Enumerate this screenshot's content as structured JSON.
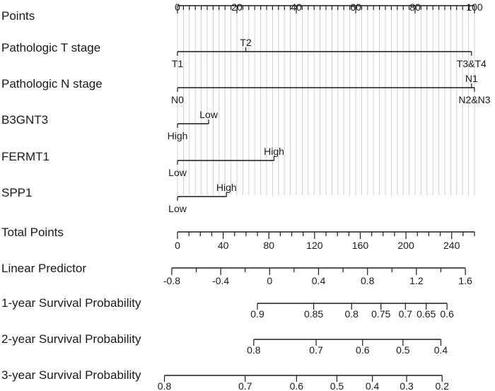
{
  "chart_data": {
    "type": "nomogram",
    "title": "",
    "points_axis": {
      "label": "Points",
      "min": 0,
      "max": 100,
      "major_ticks": [
        0,
        20,
        40,
        60,
        80,
        100
      ],
      "minor_step": 2
    },
    "variables": [
      {
        "label": "Pathologic T stage",
        "levels": [
          {
            "name": "T1",
            "points": 0,
            "pos": "below"
          },
          {
            "name": "T2",
            "points": 23,
            "pos": "above"
          },
          {
            "name": "T3&T4",
            "points": 99,
            "pos": "below"
          }
        ]
      },
      {
        "label": "Pathologic N stage",
        "levels": [
          {
            "name": "N0",
            "points": 0,
            "pos": "below"
          },
          {
            "name": "N1",
            "points": 99,
            "pos": "above"
          },
          {
            "name": "N2&N3",
            "points": 100,
            "pos": "below"
          }
        ]
      },
      {
        "label": "B3GNT3",
        "levels": [
          {
            "name": "High",
            "points": 0,
            "pos": "below"
          },
          {
            "name": "Low",
            "points": 10.5,
            "pos": "above"
          }
        ]
      },
      {
        "label": "FERMT1",
        "levels": [
          {
            "name": "Low",
            "points": 0,
            "pos": "below"
          },
          {
            "name": "High",
            "points": 32.5,
            "pos": "above"
          }
        ]
      },
      {
        "label": "SPP1",
        "levels": [
          {
            "name": "Low",
            "points": 0,
            "pos": "below"
          },
          {
            "name": "High",
            "points": 16.5,
            "pos": "above"
          }
        ]
      }
    ],
    "total_points": {
      "label": "Total Points",
      "min": 0,
      "max": 260,
      "major_ticks": [
        0,
        40,
        80,
        120,
        160,
        200,
        240
      ],
      "minor_step": 10
    },
    "linear_predictor": {
      "label": "Linear Predictor",
      "ticks": [
        "-0.8",
        "-0.4",
        "0",
        "0.4",
        "0.8",
        "1.2",
        "1.6"
      ],
      "tick_values": [
        -0.8,
        -0.4,
        0,
        0.4,
        0.8,
        1.2,
        1.6
      ],
      "minor_step": 0.2,
      "range": [
        -0.8,
        1.6
      ],
      "total_points_at_min": -5,
      "total_points_at_max": 252
    },
    "survival_axes": [
      {
        "label": "1-year Survival Probability",
        "ticks": [
          {
            "label": "0.9",
            "lp": -0.1
          },
          {
            "label": "0.85",
            "lp": 0.36
          },
          {
            "label": "0.8",
            "lp": 0.67
          },
          {
            "label": "0.75",
            "lp": 0.91
          },
          {
            "label": "0.7",
            "lp": 1.11
          },
          {
            "label": "0.65",
            "lp": 1.28
          },
          {
            "label": "0.6",
            "lp": 1.45
          }
        ]
      },
      {
        "label": "2-year Survival Probability",
        "ticks": [
          {
            "label": "0.8",
            "lp": -0.13
          },
          {
            "label": "0.7",
            "lp": 0.38
          },
          {
            "label": "0.6",
            "lp": 0.76
          },
          {
            "label": "0.5",
            "lp": 1.09
          },
          {
            "label": "0.4",
            "lp": 1.4
          }
        ]
      },
      {
        "label": "3-year Survival Probability",
        "ticks": [
          {
            "label": "0.8",
            "lp": -0.86
          },
          {
            "label": "0.7",
            "lp": -0.2
          },
          {
            "label": "0.6",
            "lp": 0.22
          },
          {
            "label": "0.5",
            "lp": 0.55
          },
          {
            "label": "0.4",
            "lp": 0.84
          },
          {
            "label": "0.3",
            "lp": 1.12
          },
          {
            "label": "0.2",
            "lp": 1.41
          }
        ]
      }
    ],
    "grid": true,
    "legend": "none"
  }
}
